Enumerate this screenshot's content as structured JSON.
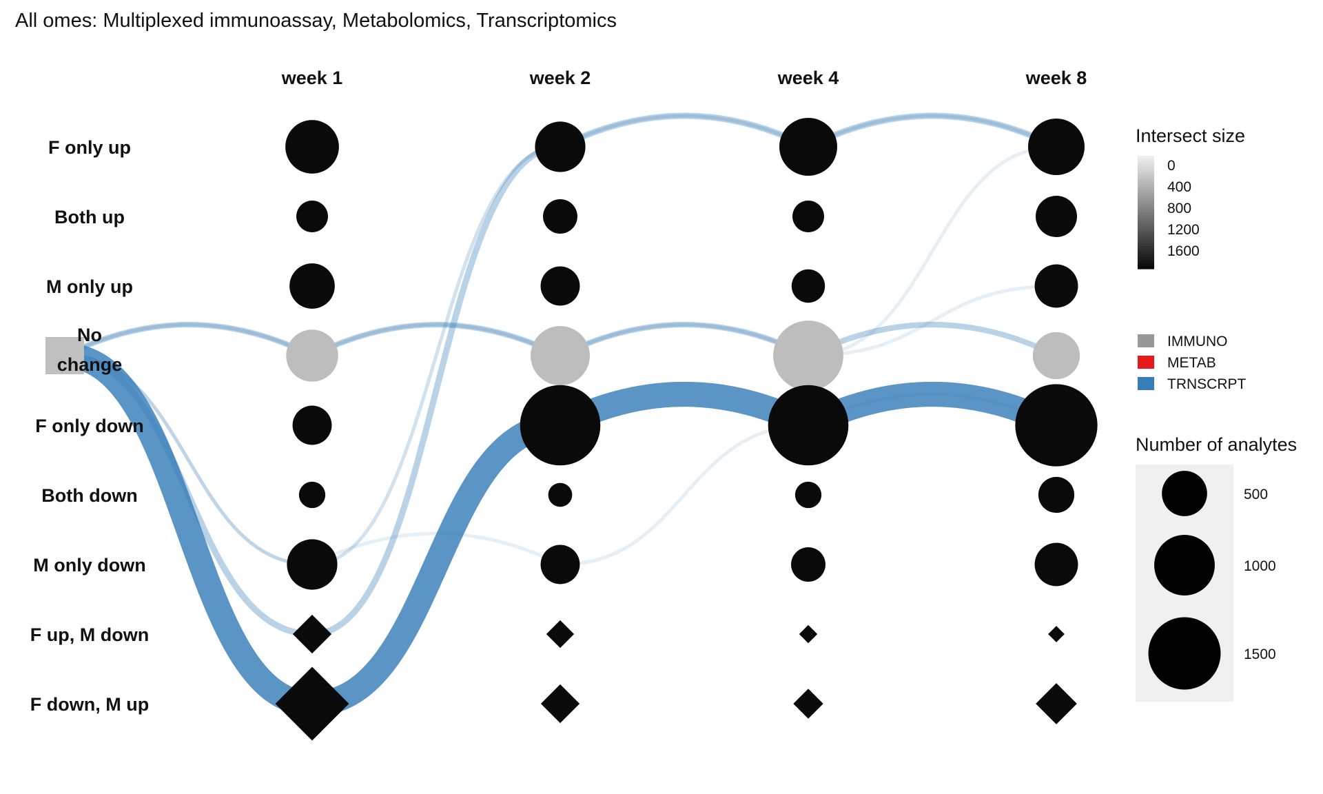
{
  "chart_data": {
    "type": "bubble-flow",
    "title": "All omes: Multiplexed immunoassay, Metabolomics, Transcriptomics",
    "columns": [
      "week 1",
      "week 2",
      "week 4",
      "week 8"
    ],
    "rows": [
      "F only up",
      "Both up",
      "M only up",
      "No change",
      "F only down",
      "Both down",
      "M only down",
      "F up, M down",
      "F down, M up"
    ],
    "start_label": "No change",
    "row_shapes": [
      "circle",
      "circle",
      "circle",
      "circle",
      "circle",
      "circle",
      "circle",
      "diamond",
      "diamond"
    ],
    "sizes": [
      [
        750,
        650,
        900,
        850
      ],
      [
        200,
        250,
        200,
        400
      ],
      [
        500,
        350,
        230,
        450
      ],
      [
        700,
        950,
        1400,
        550
      ],
      [
        350,
        1900,
        1900,
        2000
      ],
      [
        120,
        90,
        120,
        280
      ],
      [
        650,
        350,
        250,
        450
      ],
      [
        300,
        120,
        30,
        20
      ],
      [
        1400,
        300,
        150,
        350
      ]
    ],
    "intersect": [
      [
        1800,
        1800,
        1800,
        1800
      ],
      [
        1800,
        1800,
        1800,
        1800
      ],
      [
        1800,
        1800,
        1800,
        1800
      ],
      [
        300,
        300,
        300,
        300
      ],
      [
        1800,
        1800,
        1800,
        1800
      ],
      [
        1800,
        1800,
        1800,
        1800
      ],
      [
        1800,
        1800,
        1800,
        1800
      ],
      [
        1800,
        1800,
        1800,
        1800
      ],
      [
        1800,
        1800,
        1800,
        1800
      ]
    ],
    "flows": [
      {
        "ome": "TRNSCRPT",
        "path": [
          "No change",
          "No change",
          "No change",
          "No change",
          "No change"
        ],
        "weight": 180,
        "opacity": 0.35
      },
      {
        "ome": "TRNSCRPT",
        "path": [
          "No change",
          "M only down",
          "F only up",
          "F only up",
          "F only up"
        ],
        "weight": 60,
        "opacity": 0.12
      },
      {
        "ome": "TRNSCRPT",
        "path": [
          "No change",
          "M only down",
          "F only up",
          "F only up",
          "F only up"
        ],
        "weight": 60,
        "opacity": 0.12
      },
      {
        "ome": "TRNSCRPT",
        "path": [
          "No change",
          "M only down",
          "M only down",
          "F only down",
          "F only down"
        ],
        "weight": 60,
        "opacity": 0.12
      },
      {
        "ome": "TRNSCRPT",
        "path": [
          "No change",
          "F up, M down",
          "F only up",
          "F only up",
          "F only up"
        ],
        "weight": 200,
        "opacity": 0.35
      },
      {
        "ome": "TRNSCRPT",
        "path": [
          "No change",
          "F down, M up",
          "F only down",
          "F only down",
          "F only down"
        ],
        "weight": 800,
        "opacity": 0.82
      },
      {
        "ome": "TRNSCRPT",
        "path": [
          "No change",
          "No change",
          "No change",
          "No change",
          "F only up"
        ],
        "weight": 60,
        "opacity": 0.12
      },
      {
        "ome": "TRNSCRPT",
        "path": [
          "No change",
          "No change",
          "No change",
          "No change",
          "M only up"
        ],
        "weight": 60,
        "opacity": 0.12
      }
    ],
    "legend": {
      "intersect_title": "Intersect size",
      "intersect_ticks": [
        "0",
        "400",
        "800",
        "1200",
        "1600"
      ],
      "ome_entries": [
        {
          "name": "IMMUNO",
          "color": "#999999"
        },
        {
          "name": "METAB",
          "color": "#e41a1c"
        },
        {
          "name": "TRNSCRPT",
          "color": "#377eb8"
        }
      ],
      "size_title": "Number of analytes",
      "size_entries": [
        500,
        1000,
        1500
      ]
    },
    "colors": {
      "node_black": "#0a0a0a",
      "node_grey": "#bdbdbd",
      "start_box": "#c0c0c0",
      "legend_bg": "#f0f0f0"
    }
  }
}
